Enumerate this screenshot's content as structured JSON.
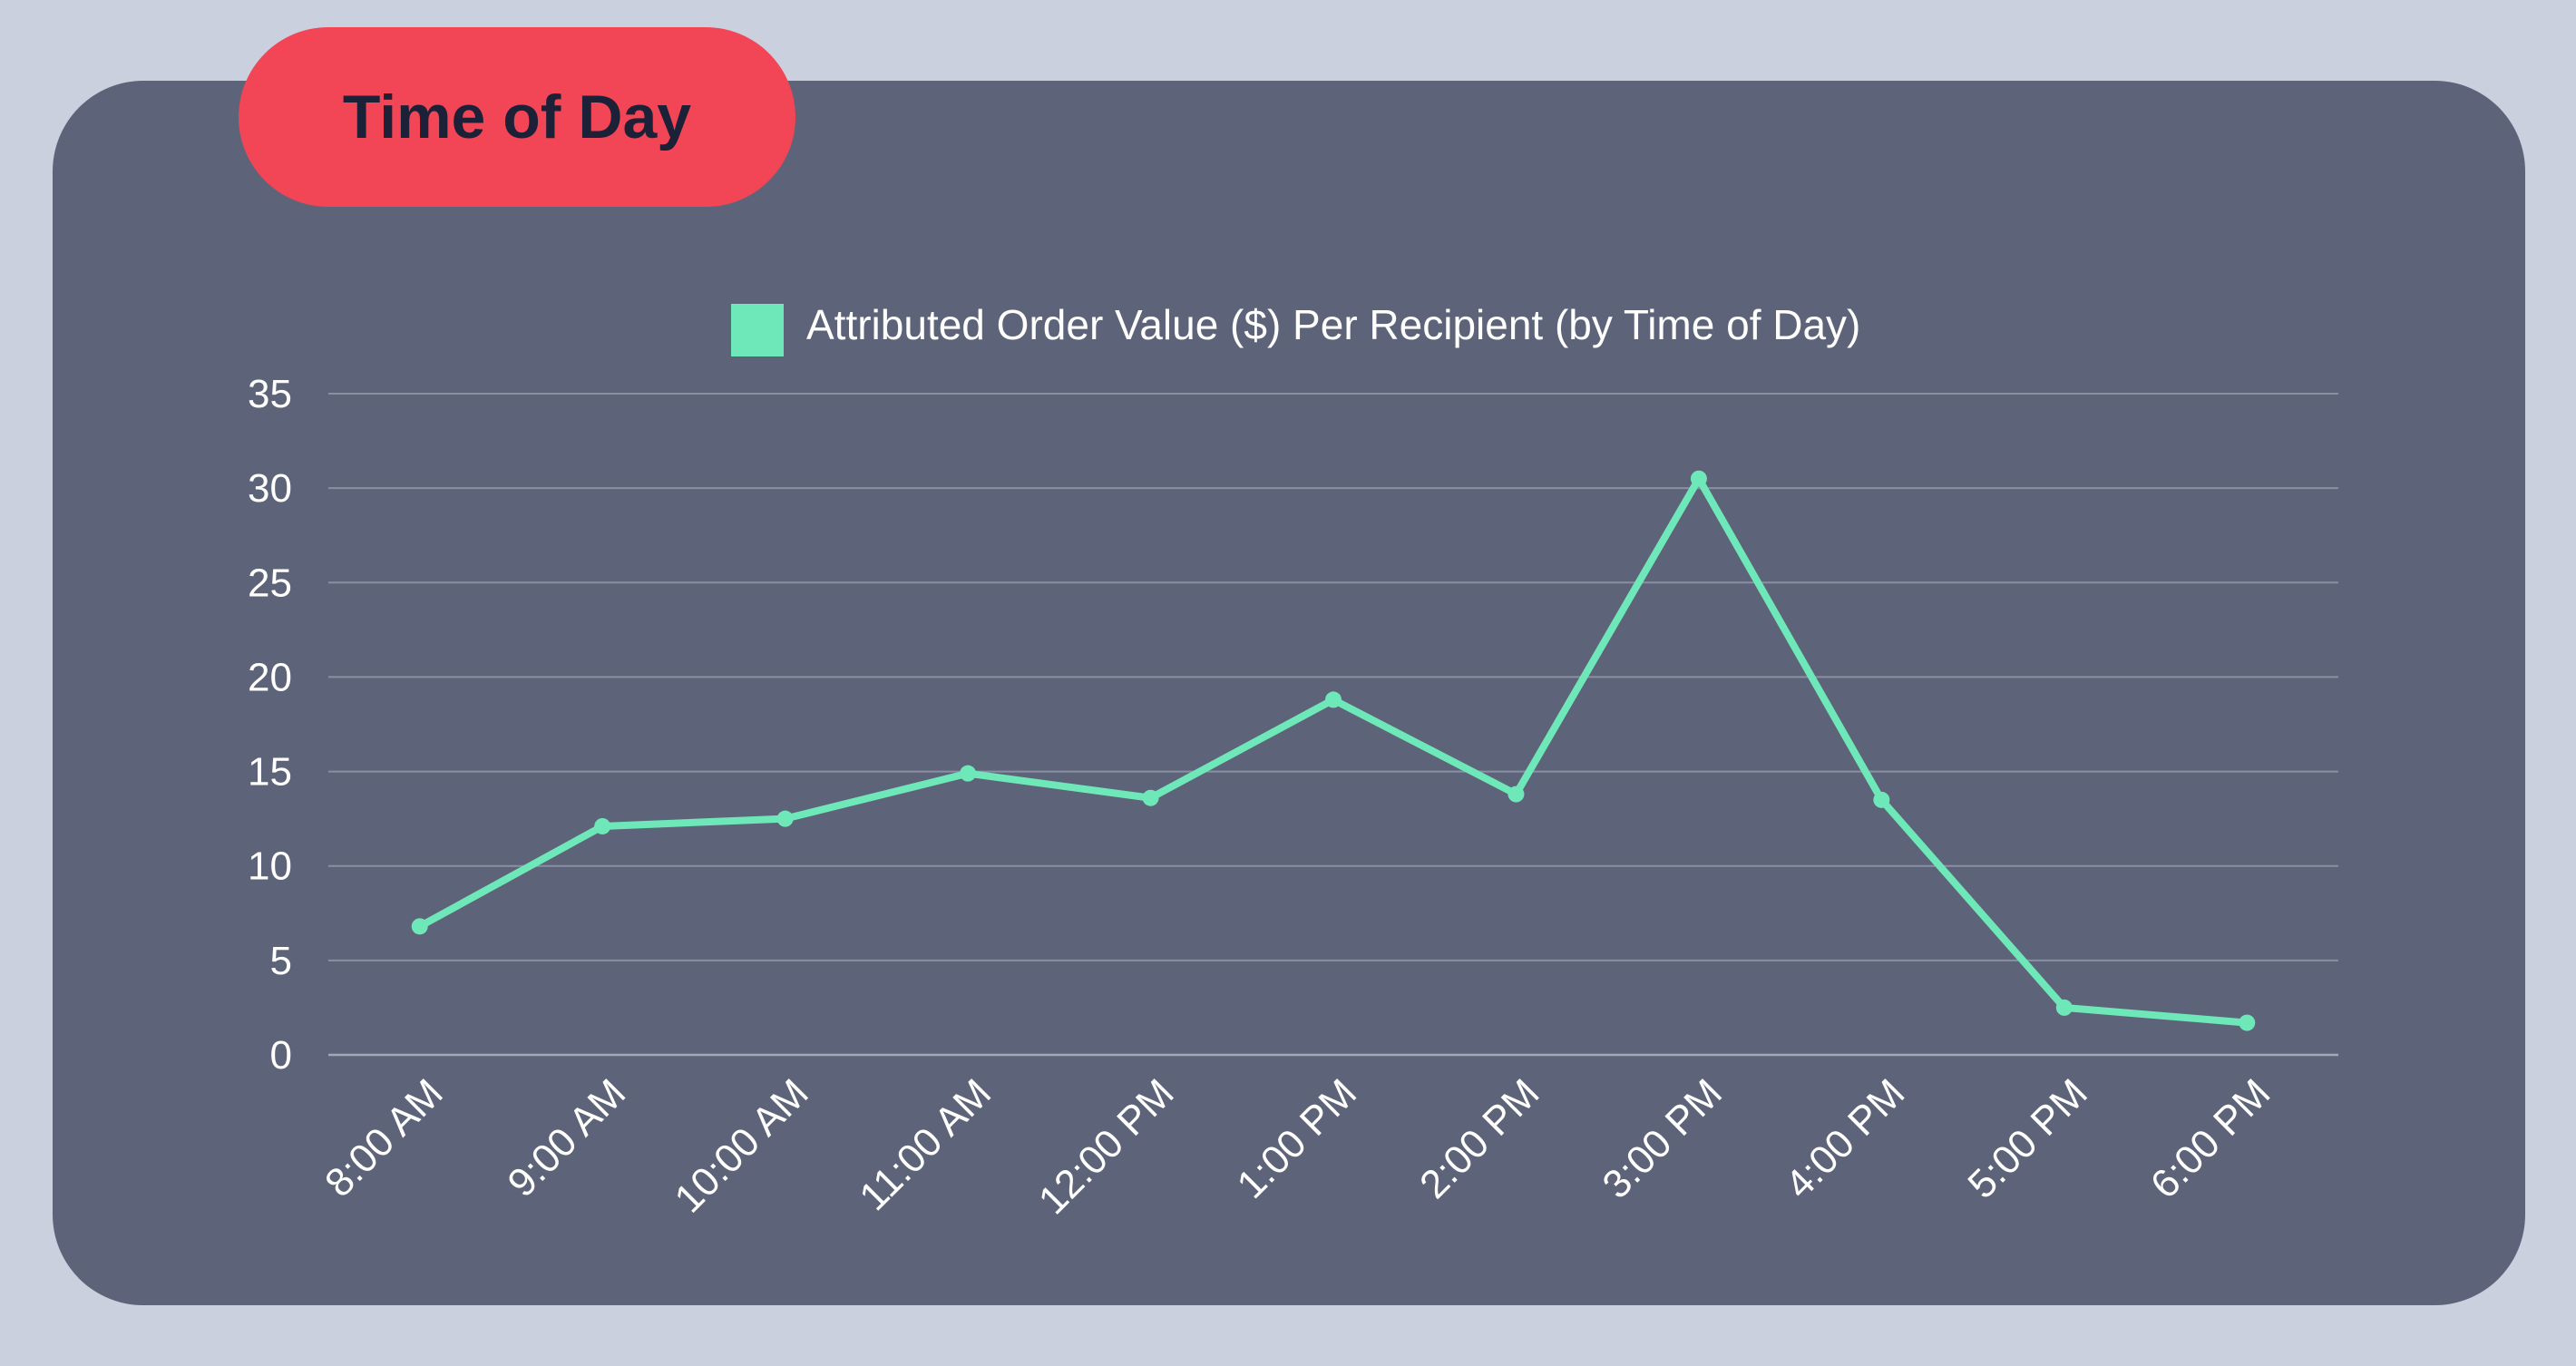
{
  "header": {
    "title": "Time of Day"
  },
  "colors": {
    "background": "#cbd0df",
    "card": "#5d6479",
    "pill": "#f24556",
    "title_text": "#1d2137",
    "series": "#6fe8b9",
    "grid": "#8a90a2",
    "text": "#ffffff"
  },
  "chart_data": {
    "type": "line",
    "title": "",
    "legend": {
      "position": "top-center"
    },
    "categories": [
      "8:00 AM",
      "9:00 AM",
      "10:00 AM",
      "11:00 AM",
      "12:00 PM",
      "1:00 PM",
      "2:00 PM",
      "3:00 PM",
      "4:00 PM",
      "5:00 PM",
      "6:00 PM"
    ],
    "series": [
      {
        "name": "Attributed Order Value ($) Per Recipient (by Time of Day)",
        "values": [
          6.8,
          12.1,
          12.5,
          14.9,
          13.6,
          18.8,
          13.8,
          30.5,
          13.5,
          2.5,
          1.7
        ]
      }
    ],
    "ylim": [
      0,
      35
    ],
    "yticks": [
      0,
      5,
      10,
      15,
      20,
      25,
      30,
      35
    ],
    "xlabel": "",
    "ylabel": "",
    "grid": true
  }
}
